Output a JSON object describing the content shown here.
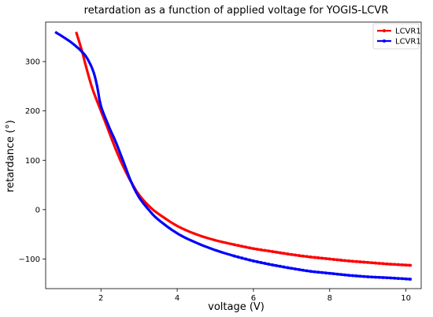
{
  "chart_data": {
    "type": "line",
    "title": "retardation as a function of applied voltage for YOGIS-LCVR",
    "xlabel": "voltage (V)",
    "ylabel": "retardance (°)",
    "xlim": [
      0.55,
      10.4
    ],
    "ylim": [
      -160,
      380
    ],
    "xticks": [
      2,
      4,
      6,
      8,
      10
    ],
    "yticks": [
      -100,
      0,
      100,
      200,
      300
    ],
    "grid": false,
    "legend_position": "top-right",
    "series": [
      {
        "name": "LCVR1",
        "color": "#ff0000",
        "x": [
          1.35,
          1.5,
          1.65,
          1.8,
          2.0,
          2.2,
          2.4,
          2.6,
          2.8,
          3.0,
          3.25,
          3.5,
          4.0,
          4.5,
          5.0,
          5.5,
          6.0,
          6.5,
          7.0,
          7.5,
          8.0,
          8.5,
          9.0,
          9.5,
          10.15
        ],
        "y": [
          360,
          322,
          278,
          240,
          200,
          160,
          120,
          85,
          55,
          30,
          8,
          -8,
          -33,
          -50,
          -62,
          -71,
          -79,
          -85,
          -91,
          -96,
          -100,
          -104,
          -107,
          -110,
          -113
        ]
      },
      {
        "name": "LCVR1",
        "color": "#0000ff",
        "x": [
          0.8,
          1.2,
          1.5,
          1.65,
          1.8,
          1.9,
          2.0,
          2.2,
          2.4,
          2.6,
          2.8,
          3.0,
          3.25,
          3.5,
          4.0,
          4.5,
          5.0,
          5.5,
          6.0,
          6.5,
          7.0,
          7.5,
          8.0,
          8.5,
          9.0,
          9.5,
          10.15
        ],
        "y": [
          360,
          340,
          320,
          305,
          280,
          250,
          210,
          170,
          135,
          95,
          55,
          25,
          0,
          -20,
          -48,
          -67,
          -82,
          -94,
          -104,
          -112,
          -119,
          -125,
          -129,
          -133,
          -136,
          -138,
          -141
        ]
      }
    ]
  }
}
